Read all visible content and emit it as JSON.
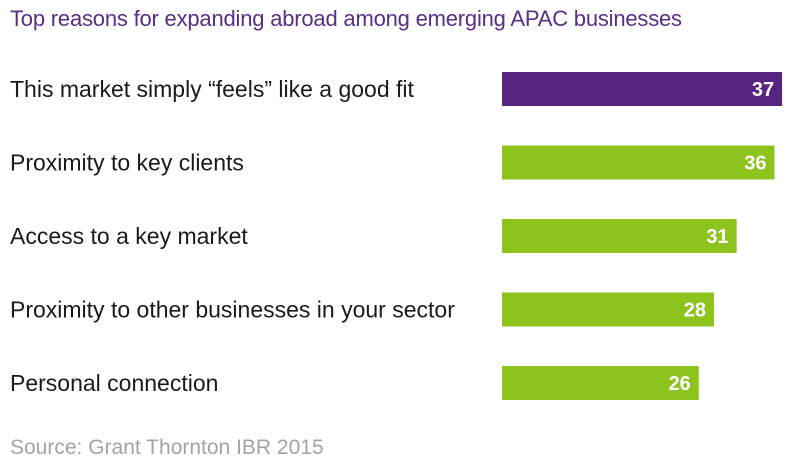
{
  "title": "Top reasons for expanding abroad among emerging APAC businesses",
  "source": "Source: Grant Thornton IBR 2015",
  "colors": {
    "title": "#5b2d83",
    "highlight_bar": "#57257f",
    "bar": "#8cc31d",
    "source": "#a3a3a3"
  },
  "chart_data": {
    "type": "bar",
    "orientation": "horizontal",
    "title": "Top reasons for expanding abroad among emerging APAC businesses",
    "categories": [
      "This market simply “feels” like a good fit",
      "Proximity to key clients",
      "Access to a key market",
      "Proximity to other businesses in your sector",
      "Personal connection"
    ],
    "values": [
      37,
      36,
      31,
      28,
      26
    ],
    "highlight_index": 0,
    "data_labels": true,
    "grid": false,
    "legend": "none"
  }
}
